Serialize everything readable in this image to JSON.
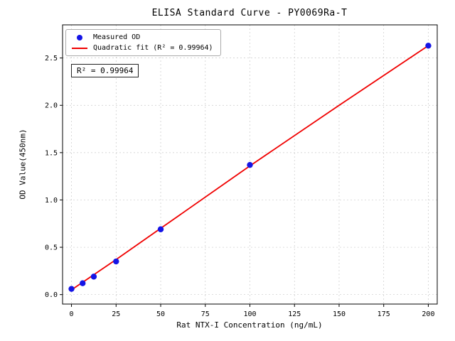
{
  "chart_data": {
    "type": "scatter",
    "title": "ELISA Standard Curve - PY0069Ra-T",
    "xlabel": "Rat NTX-I Concentration (ng/mL)",
    "ylabel": "OD Value(450nm)",
    "xlim": [
      -5,
      205
    ],
    "ylim": [
      -0.1,
      2.85
    ],
    "x_ticks": [
      0,
      25,
      50,
      75,
      100,
      125,
      150,
      175,
      200
    ],
    "y_ticks": [
      0.0,
      0.5,
      1.0,
      1.5,
      2.0,
      2.5
    ],
    "grid": true,
    "legend_position": "upper left",
    "annotation": "R² = 0.99964",
    "series": [
      {
        "name": "Measured OD",
        "type": "scatter",
        "color": "#1414e6",
        "x": [
          0,
          6.25,
          12.5,
          25,
          50,
          100,
          200
        ],
        "y": [
          0.06,
          0.12,
          0.19,
          0.35,
          0.69,
          1.37,
          2.63
        ]
      },
      {
        "name": "Quadratic fit (R² = 0.99964)",
        "type": "line",
        "color": "#f00000",
        "x": [
          0,
          25,
          50,
          100,
          150,
          200
        ],
        "y": [
          0.05,
          0.37,
          0.7,
          1.36,
          2.0,
          2.63
        ]
      }
    ]
  }
}
